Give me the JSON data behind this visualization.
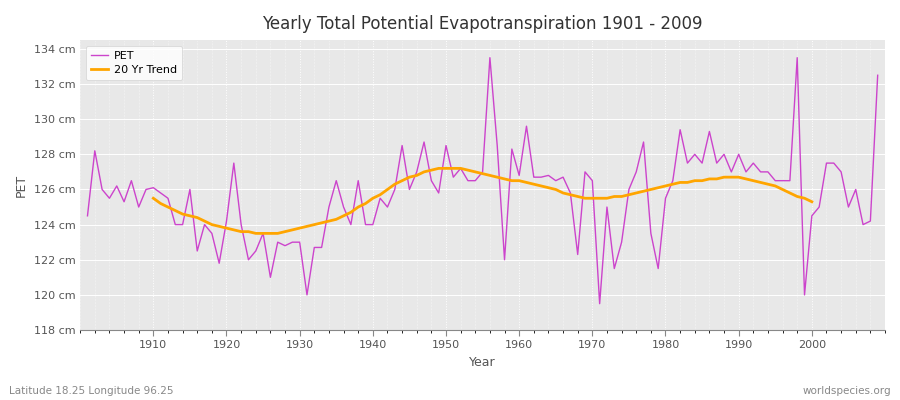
{
  "title": "Yearly Total Potential Evapotranspiration 1901 - 2009",
  "xlabel": "Year",
  "ylabel": "PET",
  "subtitle_left": "Latitude 18.25 Longitude 96.25",
  "subtitle_right": "worldspecies.org",
  "ylim": [
    118,
    134.5
  ],
  "yticks": [
    118,
    120,
    122,
    124,
    126,
    128,
    130,
    132,
    134
  ],
  "ytick_labels": [
    "118 cm",
    "120 cm",
    "122 cm",
    "124 cm",
    "126 cm",
    "128 cm",
    "130 cm",
    "132 cm",
    "134 cm"
  ],
  "pet_color": "#CC44CC",
  "trend_color": "#FFA500",
  "bg_color": "#FFFFFF",
  "plot_bg_color": "#E8E8E8",
  "grid_color": "#FFFFFF",
  "legend_pet": "PET",
  "legend_trend": "20 Yr Trend",
  "years": [
    1901,
    1902,
    1903,
    1904,
    1905,
    1906,
    1907,
    1908,
    1909,
    1910,
    1911,
    1912,
    1913,
    1914,
    1915,
    1916,
    1917,
    1918,
    1919,
    1920,
    1921,
    1922,
    1923,
    1924,
    1925,
    1926,
    1927,
    1928,
    1929,
    1930,
    1931,
    1932,
    1933,
    1934,
    1935,
    1936,
    1937,
    1938,
    1939,
    1940,
    1941,
    1942,
    1943,
    1944,
    1945,
    1946,
    1947,
    1948,
    1949,
    1950,
    1951,
    1952,
    1953,
    1954,
    1955,
    1956,
    1957,
    1958,
    1959,
    1960,
    1961,
    1962,
    1963,
    1964,
    1965,
    1966,
    1967,
    1968,
    1969,
    1970,
    1971,
    1972,
    1973,
    1974,
    1975,
    1976,
    1977,
    1978,
    1979,
    1980,
    1981,
    1982,
    1983,
    1984,
    1985,
    1986,
    1987,
    1988,
    1989,
    1990,
    1991,
    1992,
    1993,
    1994,
    1995,
    1996,
    1997,
    1998,
    1999,
    2000,
    2001,
    2002,
    2003,
    2004,
    2005,
    2006,
    2007,
    2008,
    2009
  ],
  "pet_values": [
    124.5,
    128.2,
    126.0,
    125.5,
    126.2,
    125.3,
    126.5,
    125.0,
    126.0,
    126.1,
    125.8,
    125.5,
    124.0,
    124.0,
    126.0,
    122.5,
    124.0,
    123.5,
    121.8,
    124.2,
    127.5,
    124.0,
    122.0,
    122.5,
    123.5,
    121.0,
    123.0,
    122.8,
    123.0,
    123.0,
    120.0,
    122.7,
    122.7,
    125.0,
    126.5,
    125.0,
    124.0,
    126.5,
    124.0,
    124.0,
    125.5,
    125.0,
    126.0,
    128.5,
    126.0,
    127.0,
    128.7,
    126.5,
    125.8,
    128.5,
    126.7,
    127.2,
    126.5,
    126.5,
    127.0,
    133.5,
    128.5,
    122.0,
    128.3,
    126.8,
    129.6,
    126.7,
    126.7,
    126.8,
    126.5,
    126.7,
    125.8,
    122.3,
    127.0,
    126.5,
    119.5,
    125.0,
    121.5,
    123.0,
    126.0,
    127.0,
    128.7,
    123.5,
    121.5,
    125.5,
    126.5,
    129.4,
    127.5,
    128.0,
    127.5,
    129.3,
    127.5,
    128.0,
    127.0,
    128.0,
    127.0,
    127.5,
    127.0,
    127.0,
    126.5,
    126.5,
    126.5,
    133.5,
    120.0,
    124.5,
    125.0,
    127.5,
    127.5,
    127.0,
    125.0,
    126.0,
    124.0,
    124.2,
    132.5
  ],
  "trend_years": [
    1910,
    1911,
    1912,
    1913,
    1914,
    1915,
    1916,
    1917,
    1918,
    1919,
    1920,
    1921,
    1922,
    1923,
    1924,
    1925,
    1926,
    1927,
    1928,
    1929,
    1930,
    1931,
    1932,
    1933,
    1934,
    1935,
    1936,
    1937,
    1938,
    1939,
    1940,
    1941,
    1942,
    1943,
    1944,
    1945,
    1946,
    1947,
    1948,
    1949,
    1950,
    1951,
    1952,
    1953,
    1954,
    1955,
    1956,
    1957,
    1958,
    1959,
    1960,
    1961,
    1962,
    1963,
    1964,
    1965,
    1966,
    1967,
    1968,
    1969,
    1970,
    1971,
    1972,
    1973,
    1974,
    1975,
    1976,
    1977,
    1978,
    1979,
    1980,
    1981,
    1982,
    1983,
    1984,
    1985,
    1986,
    1987,
    1988,
    1989,
    1990,
    1991,
    1992,
    1993,
    1994,
    1995,
    1996,
    1997,
    1998,
    1999,
    2000
  ],
  "trend_values": [
    125.5,
    125.2,
    125.0,
    124.8,
    124.6,
    124.5,
    124.4,
    124.2,
    124.0,
    123.9,
    123.8,
    123.7,
    123.6,
    123.6,
    123.5,
    123.5,
    123.5,
    123.5,
    123.6,
    123.7,
    123.8,
    123.9,
    124.0,
    124.1,
    124.2,
    124.3,
    124.5,
    124.7,
    125.0,
    125.2,
    125.5,
    125.7,
    126.0,
    126.3,
    126.5,
    126.7,
    126.8,
    127.0,
    127.1,
    127.2,
    127.2,
    127.2,
    127.2,
    127.1,
    127.0,
    126.9,
    126.8,
    126.7,
    126.6,
    126.5,
    126.5,
    126.4,
    126.3,
    126.2,
    126.1,
    126.0,
    125.8,
    125.7,
    125.6,
    125.5,
    125.5,
    125.5,
    125.5,
    125.6,
    125.6,
    125.7,
    125.8,
    125.9,
    126.0,
    126.1,
    126.2,
    126.3,
    126.4,
    126.4,
    126.5,
    126.5,
    126.6,
    126.6,
    126.7,
    126.7,
    126.7,
    126.6,
    126.5,
    126.4,
    126.3,
    126.2,
    126.0,
    125.8,
    125.6,
    125.5,
    125.3
  ],
  "xlim_min": 1900,
  "xlim_max": 2010
}
